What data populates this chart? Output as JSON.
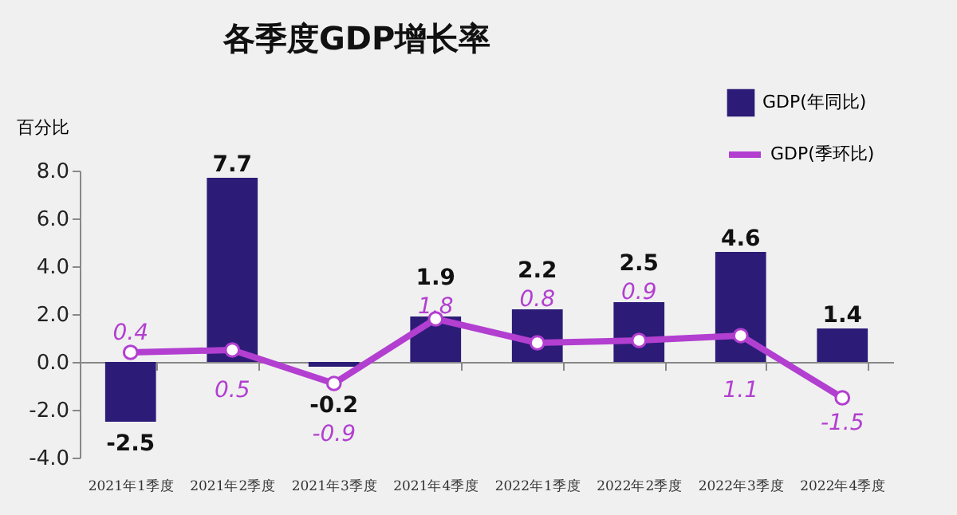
{
  "chart_data": {
    "type": "bar",
    "title": "各季度GDP增长率",
    "ylabel": "百分比",
    "categories": [
      "2021年1季度",
      "2021年2季度",
      "2021年3季度",
      "2021年4季度",
      "2022年1季度",
      "2022年2季度",
      "2022年3季度",
      "2022年4季度"
    ],
    "series": [
      {
        "name": "GDP(年同比)",
        "color": "#2d1b78",
        "values": [
          -2.5,
          7.7,
          -0.2,
          1.9,
          2.2,
          2.5,
          4.6,
          1.4
        ]
      },
      {
        "name": "GDP(季环比)",
        "type": "line",
        "color": "#b23fd0",
        "marker": "circle",
        "values": [
          0.4,
          0.5,
          -0.9,
          1.8,
          0.8,
          0.9,
          1.1,
          -1.5
        ]
      }
    ],
    "ylim": [
      -4,
      8
    ],
    "yticks": [
      {
        "value": -4,
        "label": "-4.0"
      },
      {
        "value": -2,
        "label": "-2.0"
      },
      {
        "value": 0,
        "label": "0.0"
      },
      {
        "value": 2,
        "label": "2.0"
      },
      {
        "value": 4,
        "label": "4.0"
      },
      {
        "value": 6,
        "label": "6.0"
      },
      {
        "value": 8,
        "label": "8.0"
      }
    ],
    "data_labels": true,
    "legend": "top right"
  }
}
